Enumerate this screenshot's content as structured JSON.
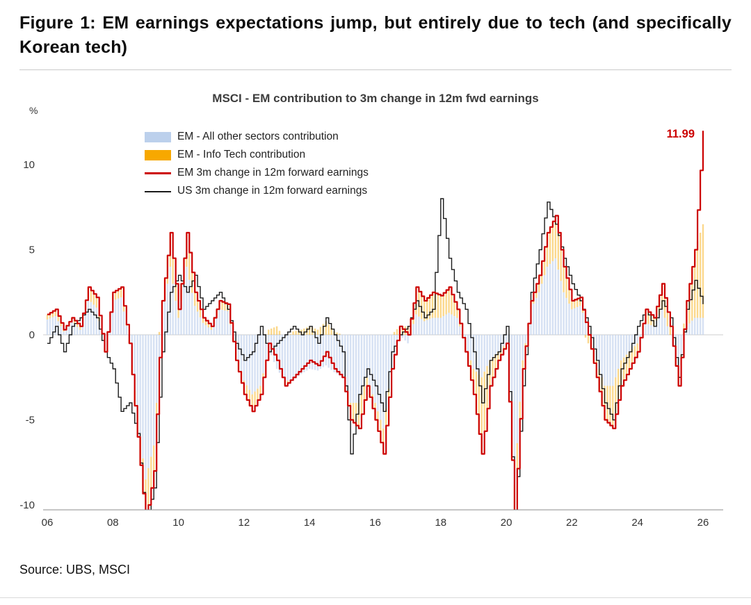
{
  "figure": {
    "title": "Figure 1: EM earnings expectations jump, but entirely due to tech (and specifically Korean tech)",
    "source": "Source: UBS, MSCI"
  },
  "chart_data": {
    "type": "bar",
    "subtype": "stacked-bars-with-lines",
    "title": "MSCI - EM contribution to 3m change in 12m fwd earnings",
    "ylabel": "%",
    "xlabel": "",
    "ylim": [
      -10,
      12.5
    ],
    "y_ticks": [
      10,
      5,
      0,
      -5,
      -10
    ],
    "x_ticks": [
      "06",
      "08",
      "10",
      "12",
      "14",
      "16",
      "18",
      "20",
      "22",
      "24",
      "26"
    ],
    "x_tick_years": [
      2006,
      2008,
      2010,
      2012,
      2014,
      2016,
      2018,
      2020,
      2022,
      2024,
      2026
    ],
    "legend_position": "top-left",
    "grid": false,
    "annotation": {
      "text": "11.99",
      "x": 2026,
      "y": 11.99,
      "color": "#cc0000"
    },
    "x": [
      2006,
      2006.25,
      2006.5,
      2006.75,
      2007,
      2007.25,
      2007.5,
      2007.75,
      2008,
      2008.25,
      2008.5,
      2008.75,
      2009,
      2009.25,
      2009.5,
      2009.75,
      2010,
      2010.25,
      2010.5,
      2010.75,
      2011,
      2011.25,
      2011.5,
      2011.75,
      2012,
      2012.25,
      2012.5,
      2012.75,
      2013,
      2013.25,
      2013.5,
      2013.75,
      2014,
      2014.25,
      2014.5,
      2014.75,
      2015,
      2015.25,
      2015.5,
      2015.75,
      2016,
      2016.25,
      2016.5,
      2016.75,
      2017,
      2017.25,
      2017.5,
      2017.75,
      2018,
      2018.25,
      2018.5,
      2018.75,
      2019,
      2019.25,
      2019.5,
      2019.75,
      2020,
      2020.25,
      2020.5,
      2020.75,
      2021,
      2021.25,
      2021.5,
      2021.75,
      2022,
      2022.25,
      2022.5,
      2022.75,
      2023,
      2023.25,
      2023.5,
      2023.75,
      2024,
      2024.25,
      2024.5,
      2024.75,
      2025,
      2025.25,
      2025.5,
      2025.75,
      2026
    ],
    "series": [
      {
        "name": "EM - All other sectors contribution",
        "type": "bar",
        "color": "#c5d4ee",
        "values": [
          0.9,
          1.1,
          0.2,
          0.8,
          0.3,
          2.1,
          1.6,
          -0.8,
          2.0,
          2.2,
          -0.3,
          -4.8,
          -8.5,
          -6.5,
          1.0,
          4.0,
          1.0,
          4.0,
          1.7,
          0.7,
          0.3,
          1.5,
          1.4,
          -1.0,
          -2.7,
          -3.5,
          -3.0,
          -0.8,
          -2.0,
          -2.7,
          -2.7,
          -2.3,
          -2.0,
          -2.1,
          -1.8,
          -2.2,
          -2.5,
          -4.0,
          -4.0,
          -2.5,
          -4.0,
          -5.5,
          -2.0,
          0.0,
          -0.5,
          1.2,
          0.8,
          1.0,
          1.0,
          1.3,
          1.0,
          -0.5,
          -2.0,
          -2.5,
          -1.5,
          -1.0,
          -0.5,
          -8.8,
          -1.5,
          1.5,
          2.5,
          4.0,
          4.5,
          2.5,
          1.5,
          1.7,
          0.5,
          -1.5,
          -3.0,
          -3.0,
          -1.5,
          -1.0,
          -0.5,
          0.7,
          0.5,
          1.5,
          0.0,
          -2.0,
          0.5,
          1.0,
          1.0
        ]
      },
      {
        "name": "EM - Info Tech contribution",
        "type": "bar",
        "color": "#f7a800",
        "values": [
          0.3,
          0.4,
          0.1,
          0.2,
          0.2,
          0.7,
          0.6,
          -0.2,
          0.5,
          0.6,
          -0.2,
          -1.2,
          -2.5,
          -1.5,
          1.0,
          2.0,
          0.5,
          2.0,
          0.8,
          0.3,
          0.2,
          0.5,
          0.4,
          -0.5,
          -0.8,
          -1.0,
          -0.5,
          0.3,
          0.5,
          -0.3,
          0.2,
          0.3,
          0.5,
          0.3,
          0.8,
          0.2,
          0.0,
          -1.0,
          -1.5,
          -0.5,
          -1.0,
          -1.5,
          0.0,
          0.5,
          0.5,
          1.6,
          1.2,
          1.5,
          1.3,
          1.5,
          0.5,
          -0.5,
          -1.5,
          -4.5,
          -1.5,
          -0.5,
          0.0,
          -2.0,
          -0.5,
          0.5,
          1.0,
          2.0,
          2.5,
          1.5,
          0.5,
          0.5,
          -0.5,
          -1.0,
          -2.0,
          -2.5,
          -1.5,
          -1.0,
          -0.5,
          0.8,
          0.5,
          1.5,
          0.5,
          -1.0,
          1.5,
          4.0,
          5.5
        ]
      },
      {
        "name": "EM 3m change in 12m forward earnings",
        "type": "line",
        "color": "#cc0000",
        "values": [
          1.2,
          1.5,
          0.3,
          1.0,
          0.5,
          2.8,
          2.2,
          -1.0,
          2.5,
          2.8,
          -0.5,
          -6.0,
          -11.0,
          -8.0,
          2.0,
          6.0,
          1.5,
          6.0,
          2.5,
          1.0,
          0.5,
          2.0,
          1.8,
          -1.5,
          -3.5,
          -4.5,
          -3.5,
          -0.5,
          -1.5,
          -3.0,
          -2.5,
          -2.0,
          -1.5,
          -1.8,
          -1.0,
          -2.0,
          -2.5,
          -5.0,
          -5.5,
          -3.0,
          -5.0,
          -7.0,
          -2.0,
          0.5,
          0.0,
          2.8,
          2.0,
          2.5,
          2.3,
          2.8,
          1.5,
          -1.0,
          -3.5,
          -7.0,
          -3.0,
          -1.5,
          -0.5,
          -10.8,
          -2.0,
          2.0,
          3.5,
          6.0,
          7.0,
          4.0,
          2.0,
          2.2,
          0.0,
          -2.5,
          -5.0,
          -5.5,
          -3.0,
          -2.0,
          -1.0,
          1.5,
          1.0,
          3.0,
          0.5,
          -3.0,
          2.0,
          5.0,
          11.99
        ]
      },
      {
        "name": "US 3m change in 12m forward earnings",
        "type": "line",
        "color": "#1a1a1a",
        "values": [
          -0.5,
          0.5,
          -1.0,
          0.5,
          1.0,
          1.5,
          1.0,
          -1.0,
          -2.0,
          -4.5,
          -4.0,
          -5.8,
          -11.0,
          -9.0,
          -1.0,
          2.5,
          3.5,
          2.5,
          3.5,
          1.5,
          2.0,
          2.5,
          1.5,
          -0.5,
          -1.5,
          -1.0,
          0.5,
          -1.0,
          -0.5,
          0.0,
          0.5,
          0.0,
          0.5,
          -0.5,
          1.0,
          0.0,
          -1.0,
          -7.0,
          -3.5,
          -2.0,
          -3.0,
          -4.5,
          -1.0,
          0.0,
          0.5,
          2.0,
          1.0,
          1.5,
          8.0,
          4.5,
          2.5,
          1.5,
          -1.0,
          -4.0,
          -1.5,
          -1.0,
          0.5,
          -11.0,
          -3.0,
          2.5,
          5.0,
          7.8,
          6.5,
          4.5,
          3.0,
          2.0,
          0.5,
          -1.5,
          -4.0,
          -5.0,
          -2.0,
          -1.0,
          0.5,
          1.5,
          0.5,
          2.0,
          1.0,
          -2.5,
          1.5,
          3.2,
          1.8
        ]
      }
    ]
  }
}
